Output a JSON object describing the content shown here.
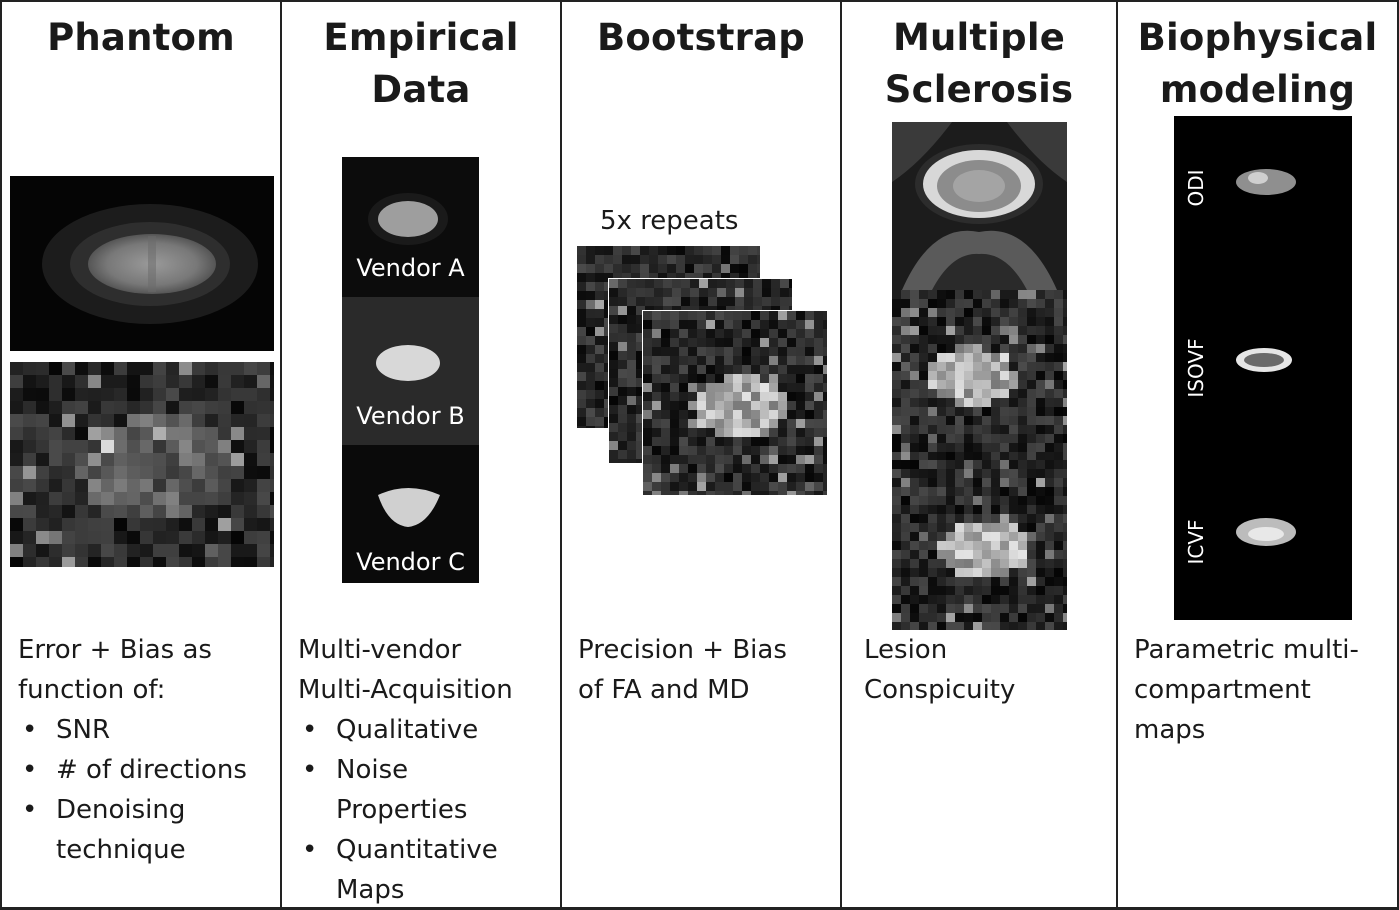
{
  "columns": [
    {
      "title_lines": [
        "Phantom"
      ],
      "intro_lines": [
        "Error + Bias as",
        "function of:"
      ],
      "bullets": [
        [
          "SNR"
        ],
        [
          "# of directions"
        ],
        [
          "Denoising",
          "technique"
        ]
      ]
    },
    {
      "title_lines": [
        "Empirical",
        "Data"
      ],
      "intro_lines": [
        "Multi-vendor",
        "Multi-Acquisition"
      ],
      "bullets": [
        [
          "Qualitative"
        ],
        [
          "Noise",
          "Properties"
        ],
        [
          "Quantitative",
          "Maps"
        ]
      ],
      "vendors": [
        "Vendor A",
        "Vendor B",
        "Vendor C"
      ]
    },
    {
      "title_lines": [
        "Bootstrap"
      ],
      "intro_lines": [
        "Precision + Bias",
        "of FA and MD"
      ],
      "bullets": [],
      "repeats_label": "5x repeats"
    },
    {
      "title_lines": [
        "Multiple",
        "Sclerosis"
      ],
      "intro_lines": [
        "Lesion",
        "Conspicuity"
      ],
      "bullets": []
    },
    {
      "title_lines": [
        "Biophysical",
        "modeling"
      ],
      "intro_lines": [
        "Parametric multi-",
        "compartment",
        "maps"
      ],
      "bullets": [],
      "maps": [
        "ODI",
        "ISOVF",
        "ICVF"
      ]
    }
  ]
}
